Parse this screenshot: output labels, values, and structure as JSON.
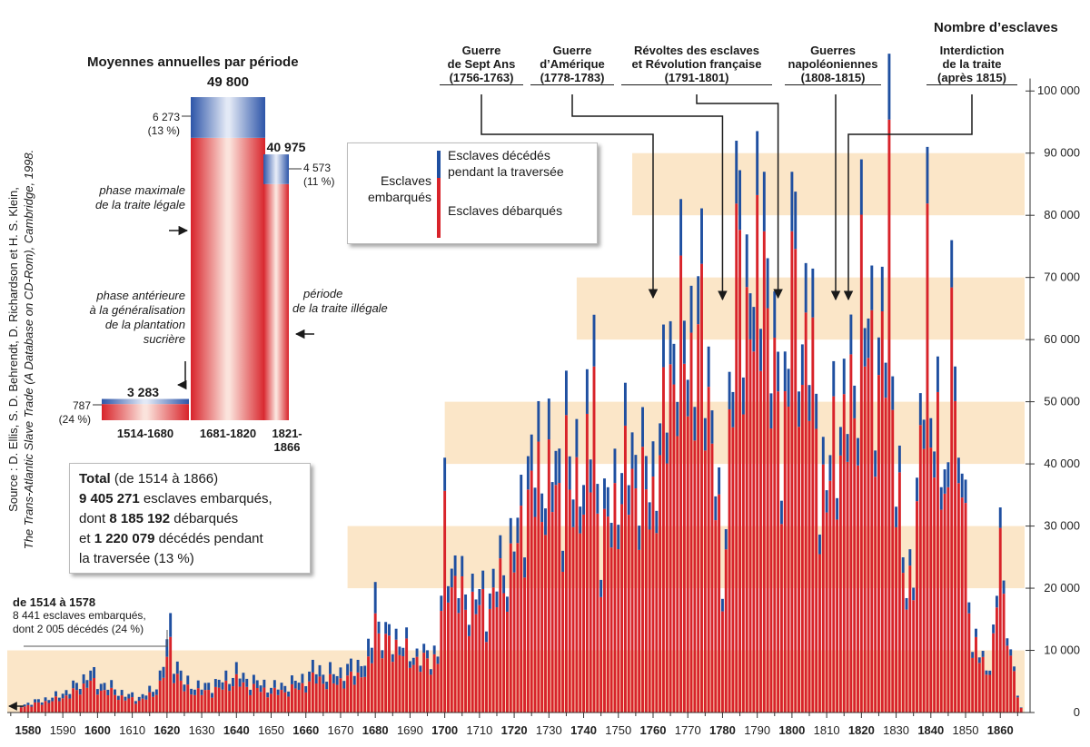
{
  "chart_data": {
    "type": "bar",
    "stacked": true,
    "ylabel": "Nombre d’esclaves",
    "ylim": [
      0,
      105000
    ],
    "yticks": [
      0,
      10000,
      20000,
      30000,
      40000,
      50000,
      60000,
      70000,
      80000,
      90000,
      100000
    ],
    "ytick_labels": [
      "0",
      "10 000",
      "20 000",
      "30 000",
      "40 000",
      "50 000",
      "60 000",
      "70 000",
      "80 000",
      "90 000",
      "100 000"
    ],
    "xlim": [
      1574,
      1867
    ],
    "xticks": [
      1580,
      1590,
      1600,
      1610,
      1620,
      1630,
      1640,
      1650,
      1660,
      1670,
      1680,
      1690,
      1700,
      1710,
      1720,
      1730,
      1740,
      1750,
      1760,
      1770,
      1780,
      1790,
      1800,
      1810,
      1820,
      1830,
      1840,
      1850,
      1860
    ],
    "series": [
      {
        "name": "Esclaves débarqués",
        "color": "#d8232a"
      },
      {
        "name": "Esclaves décédés pendant la traversée",
        "color": "#1f4fa0"
      }
    ],
    "anchors_total": [
      [
        1578,
        1500
      ],
      [
        1580,
        1800
      ],
      [
        1584,
        2500
      ],
      [
        1588,
        3200
      ],
      [
        1592,
        4500
      ],
      [
        1595,
        6000
      ],
      [
        1598,
        8000
      ],
      [
        1600,
        6000
      ],
      [
        1604,
        5000
      ],
      [
        1608,
        3500
      ],
      [
        1612,
        3000
      ],
      [
        1616,
        4500
      ],
      [
        1618,
        7000
      ],
      [
        1620,
        13000
      ],
      [
        1622,
        11000
      ],
      [
        1625,
        6000
      ],
      [
        1630,
        5000
      ],
      [
        1635,
        6000
      ],
      [
        1640,
        8000
      ],
      [
        1643,
        6500
      ],
      [
        1646,
        6000
      ],
      [
        1650,
        5000
      ],
      [
        1655,
        5500
      ],
      [
        1660,
        7000
      ],
      [
        1663,
        9000
      ],
      [
        1666,
        7500
      ],
      [
        1670,
        8000
      ],
      [
        1674,
        9000
      ],
      [
        1678,
        11000
      ],
      [
        1680,
        17000
      ],
      [
        1683,
        15000
      ],
      [
        1686,
        15000
      ],
      [
        1690,
        12000
      ],
      [
        1694,
        11000
      ],
      [
        1698,
        12000
      ],
      [
        1700,
        34000
      ],
      [
        1703,
        28000
      ],
      [
        1706,
        23000
      ],
      [
        1709,
        24000
      ],
      [
        1712,
        22000
      ],
      [
        1715,
        27000
      ],
      [
        1718,
        30000
      ],
      [
        1721,
        36000
      ],
      [
        1724,
        48000
      ],
      [
        1727,
        50000
      ],
      [
        1730,
        50000
      ],
      [
        1733,
        47000
      ],
      [
        1736,
        45000
      ],
      [
        1739,
        50000
      ],
      [
        1742,
        55000
      ],
      [
        1745,
        37000
      ],
      [
        1748,
        42000
      ],
      [
        1751,
        50000
      ],
      [
        1754,
        52000
      ],
      [
        1757,
        48000
      ],
      [
        1760,
        47000
      ],
      [
        1763,
        60000
      ],
      [
        1765,
        73000
      ],
      [
        1768,
        78000
      ],
      [
        1771,
        75000
      ],
      [
        1774,
        80000
      ],
      [
        1777,
        62000
      ],
      [
        1780,
        24000
      ],
      [
        1783,
        78000
      ],
      [
        1785,
        90000
      ],
      [
        1788,
        86000
      ],
      [
        1791,
        88000
      ],
      [
        1794,
        75000
      ],
      [
        1797,
        58000
      ],
      [
        1799,
        70000
      ],
      [
        1801,
        80000
      ],
      [
        1803,
        80000
      ],
      [
        1806,
        72000
      ],
      [
        1808,
        49000
      ],
      [
        1810,
        45000
      ],
      [
        1812,
        56000
      ],
      [
        1815,
        60000
      ],
      [
        1818,
        67000
      ],
      [
        1820,
        80000
      ],
      [
        1822,
        76000
      ],
      [
        1825,
        72000
      ],
      [
        1827,
        78000
      ],
      [
        1828,
        100000
      ],
      [
        1829,
        74000
      ],
      [
        1830,
        52000
      ],
      [
        1833,
        22000
      ],
      [
        1836,
        42000
      ],
      [
        1838,
        66000
      ],
      [
        1839,
        76000
      ],
      [
        1841,
        61000
      ],
      [
        1843,
        48000
      ],
      [
        1845,
        46000
      ],
      [
        1847,
        58000
      ],
      [
        1848,
        70000
      ],
      [
        1850,
        40000
      ],
      [
        1852,
        13000
      ],
      [
        1855,
        12000
      ],
      [
        1856,
        8000
      ],
      [
        1858,
        14000
      ],
      [
        1860,
        28000
      ],
      [
        1862,
        18000
      ],
      [
        1864,
        7000
      ],
      [
        1866,
        1000
      ]
    ],
    "spikes": [
      [
        1621,
        16000
      ],
      [
        1680,
        21000
      ],
      [
        1700,
        41000
      ],
      [
        1743,
        64000
      ],
      [
        1784,
        92000
      ],
      [
        1792,
        87000
      ],
      [
        1800,
        87000
      ],
      [
        1820,
        89000
      ],
      [
        1828,
        106000
      ],
      [
        1839,
        91000
      ],
      [
        1846,
        76000
      ],
      [
        1848,
        41000
      ],
      [
        1860,
        33000
      ],
      [
        1735,
        55000
      ]
    ],
    "death_share": {
      "to_1680": 0.24,
      "to_1760": 0.13,
      "to_1808": 0.11,
      "to_1866": 0.1
    }
  },
  "inset": {
    "title": "Moyennes annuelles par période",
    "periods": [
      {
        "label": "1514-1680",
        "total": 3283,
        "total_label": "3 283",
        "deaths": 787,
        "deaths_label": "787",
        "pct_label": "(24 %)"
      },
      {
        "label": "1681-1820",
        "total": 49800,
        "total_label": "49 800",
        "deaths": 6273,
        "deaths_label": "6 273",
        "pct_label": "(13 %)"
      },
      {
        "label": "1821-1866",
        "total": 40975,
        "total_label": "40 975",
        "deaths": 4573,
        "deaths_label": "4 573",
        "pct_label": "(11 %)"
      }
    ],
    "phase_max": [
      "phase maximale",
      "de la traite légale"
    ],
    "phase_before": [
      "phase antérieure",
      "à la généralisation",
      "de la plantation",
      "sucrière"
    ],
    "phase_illegal": [
      "période",
      "de la traite illégale"
    ]
  },
  "legend": {
    "group": [
      "Esclaves",
      "embarqués"
    ],
    "deaths": [
      "Esclaves décédés",
      "pendant la traversée"
    ],
    "landed": "Esclaves débarqués"
  },
  "events": [
    {
      "lines": [
        "Guerre",
        "de Sept Ans"
      ],
      "years": "(1756-1763)",
      "arrow_year": 1760
    },
    {
      "lines": [
        "Guerre",
        "d’Amérique"
      ],
      "years": "(1778-1783)",
      "arrow_year": 1780
    },
    {
      "lines": [
        "Révoltes des esclaves",
        "et Révolution française"
      ],
      "years": "(1791-1801)",
      "arrow_year": 1796
    },
    {
      "lines": [
        "Guerres",
        "napoléoniennes"
      ],
      "years": "(1808-1815)",
      "arrow_year": 1812
    },
    {
      "lines": [
        "Interdiction",
        "de la traite"
      ],
      "years": "(après 1815)",
      "arrow_year": 1815
    }
  ],
  "total_box": {
    "line1_bold": "Total",
    "line1_rest": " (de 1514 à 1866)",
    "line2_bold": "9 405 271",
    "line2_rest": " esclaves embarqués,",
    "line3_pre": "dont ",
    "line3_bold": "8 185 192",
    "line3_rest": " débarqués",
    "line4_pre": "et ",
    "line4_bold": "1 220 079",
    "line4_rest": " décédés pendant",
    "line5": "la traversée (13 %)"
  },
  "early_note": {
    "title": "de 1514 à 1578",
    "line1": "8 441 esclaves embarqués,",
    "line2": "dont 2 005 décédés (24 %)"
  },
  "source": [
    "Source : D. Ellis, S. D. Behrendt, D. Richardson et H. S. Klein,",
    "The Trans-Atlantic Slave Trade (A Database on CD-Rom), Cambridge, 1998."
  ]
}
